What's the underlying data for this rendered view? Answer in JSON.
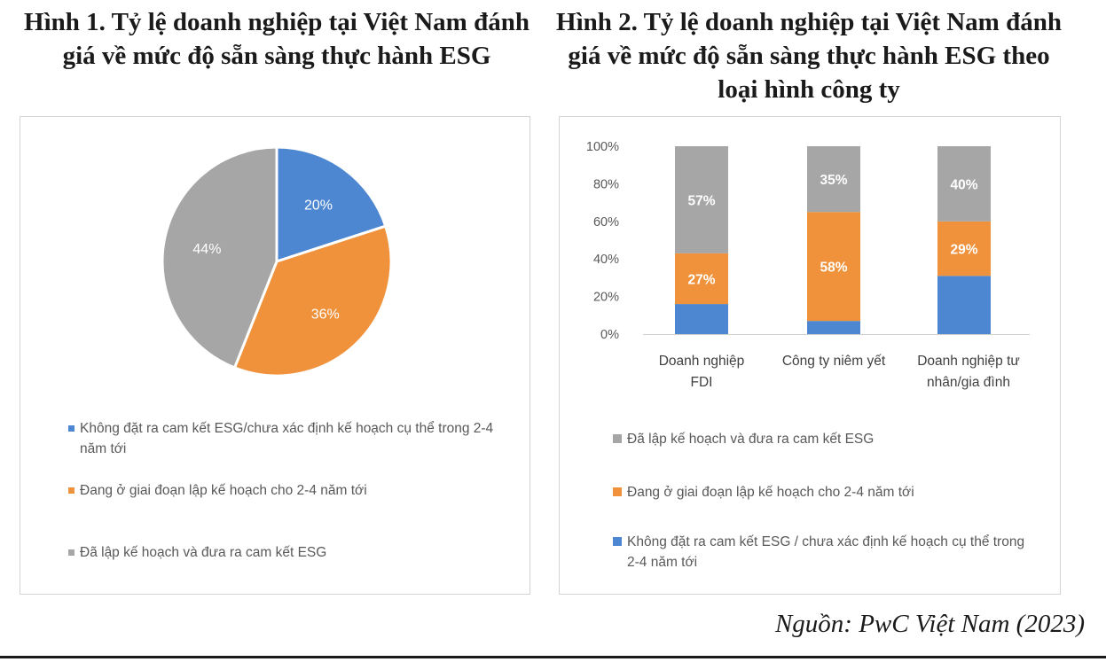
{
  "figure1": {
    "title": "Hình 1. Tỷ lệ doanh nghiệp tại Việt Nam đánh giá về mức độ sẵn sàng thực hành ESG"
  },
  "figure2": {
    "title": "Hình 2. Tỷ lệ doanh nghiệp tại Việt Nam đánh giá về mức độ sẵn sàng thực hành ESG theo loại hình công ty"
  },
  "source": "Nguồn: PwC Việt Nam (2023)",
  "colors": {
    "blue": "#4d86d1",
    "orange": "#f0923b",
    "gray": "#a6a6a6"
  },
  "chart_data": [
    {
      "type": "pie",
      "title": "Hình 1. Tỷ lệ doanh nghiệp tại Việt Nam đánh giá về mức độ sẵn sàng thực hành ESG",
      "slices": [
        {
          "label": "Không đặt ra cam kết ESG/chưa xác định kế hoạch cụ thể trong 2-4 năm tới",
          "value": 20,
          "display": "20%",
          "color": "#4d86d1"
        },
        {
          "label": "Đang ở giai đoạn lập kế hoạch cho 2-4 năm tới",
          "value": 36,
          "display": "36%",
          "color": "#f0923b"
        },
        {
          "label": "Đã lập kế hoạch và đưa ra cam kết ESG",
          "value": 44,
          "display": "44%",
          "color": "#a6a6a6"
        }
      ],
      "legend_position": "bottom"
    },
    {
      "type": "bar",
      "stacked": true,
      "title": "Hình 2. Tỷ lệ doanh nghiệp tại Việt Nam đánh giá về mức độ sẵn sàng thực hành ESG theo loại hình công ty",
      "categories": [
        "Doanh nghiệp FDI",
        "Công ty niêm yết",
        "Doanh nghiệp tư nhân/gia đình"
      ],
      "series": [
        {
          "name": "Không đặt ra cam kết ESG / chưa xác định kế hoạch cụ thể trong 2-4 năm tới",
          "values": [
            16,
            7,
            31
          ],
          "labels": [
            "",
            "",
            ""
          ],
          "color": "#4d86d1"
        },
        {
          "name": "Đang ở giai đoạn lập kế hoạch cho 2-4 năm tới",
          "values": [
            27,
            58,
            29
          ],
          "labels": [
            "27%",
            "58%",
            "29%"
          ],
          "color": "#f0923b"
        },
        {
          "name": "Đã lập kế hoạch và đưa ra cam kết ESG",
          "values": [
            57,
            35,
            40
          ],
          "labels": [
            "57%",
            "35%",
            "40%"
          ],
          "color": "#a6a6a6"
        }
      ],
      "ylim": [
        0,
        100
      ],
      "yticks": [
        "0%",
        "20%",
        "40%",
        "60%",
        "80%",
        "100%"
      ],
      "grid": false,
      "legend_position": "bottom",
      "legend_order": [
        2,
        1,
        0
      ]
    }
  ]
}
